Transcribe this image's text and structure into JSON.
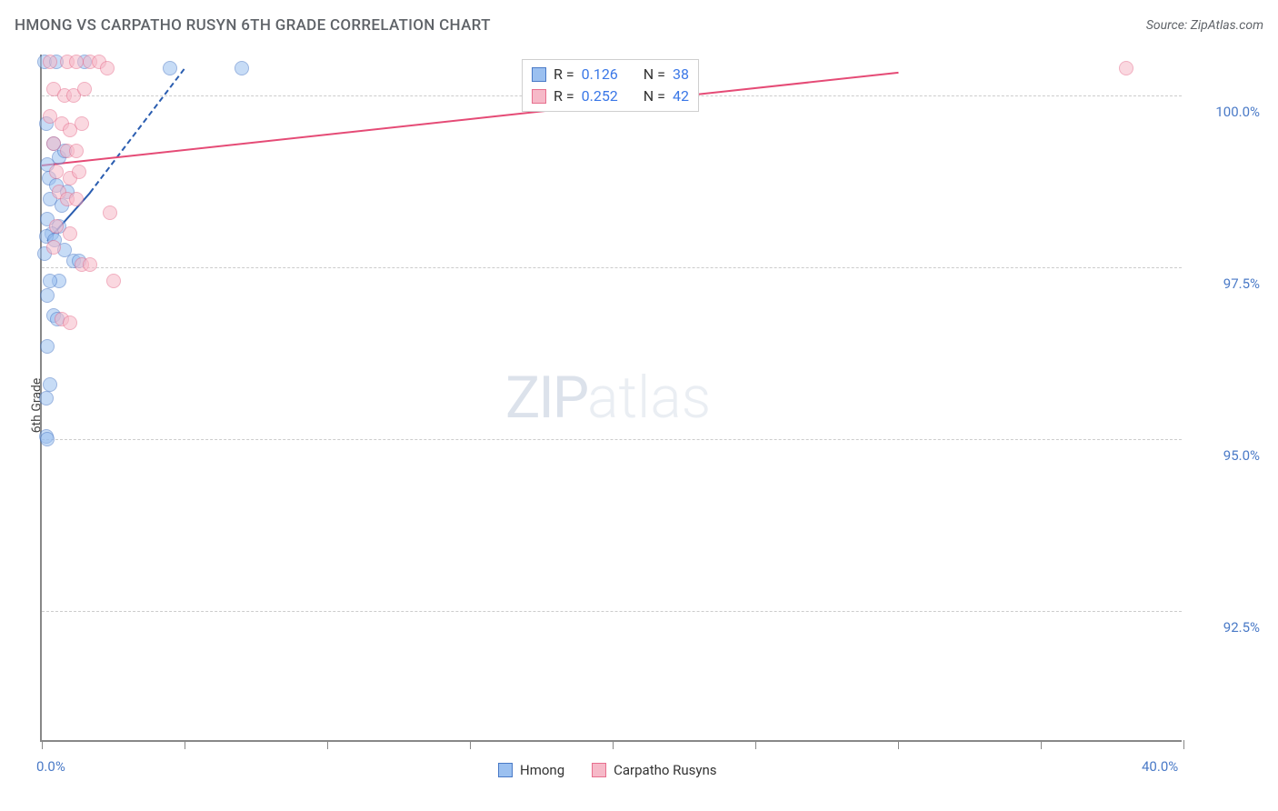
{
  "title": "HMONG VS CARPATHO RUSYN 6TH GRADE CORRELATION CHART",
  "source": "Source: ZipAtlas.com",
  "ylabel": "6th Grade",
  "watermark": {
    "zip": "ZIP",
    "atlas": "atlas"
  },
  "chart": {
    "type": "scatter",
    "background_color": "#ffffff",
    "grid_color": "#cccccc",
    "axis_color": "#888888",
    "tick_label_color": "#4a7ac7",
    "xlim": [
      0.0,
      40.0
    ],
    "ylim": [
      90.6,
      100.6
    ],
    "y_ticks": [
      {
        "value": 100.0,
        "label": "100.0%"
      },
      {
        "value": 97.5,
        "label": "97.5%"
      },
      {
        "value": 95.0,
        "label": "95.0%"
      },
      {
        "value": 92.5,
        "label": "92.5%"
      }
    ],
    "x_tick_positions": [
      0,
      5,
      10,
      15,
      20,
      25,
      30,
      35,
      40
    ],
    "x_tick_labels": [
      {
        "value": 0,
        "label": "0.0%"
      },
      {
        "value": 40,
        "label": "40.0%"
      }
    ],
    "marker_radius": 8,
    "marker_opacity": 0.55,
    "series": [
      {
        "name": "Hmong",
        "color_fill": "#9bc0f0",
        "color_stroke": "#4a7ac7",
        "R": "0.126",
        "N": "38",
        "trend": {
          "x1": 0.2,
          "y1": 97.9,
          "x2": 1.7,
          "y2": 98.6,
          "color": "#2a5db0",
          "dash_x1": 1.7,
          "dash_x2": 5.0,
          "dash_y2": 100.4
        },
        "points": [
          [
            0.1,
            100.5
          ],
          [
            0.5,
            100.5
          ],
          [
            1.5,
            100.5
          ],
          [
            4.5,
            100.4
          ],
          [
            7.0,
            100.4
          ],
          [
            0.15,
            99.6
          ],
          [
            0.4,
            99.3
          ],
          [
            0.2,
            99.0
          ],
          [
            0.6,
            99.1
          ],
          [
            0.8,
            99.2
          ],
          [
            0.25,
            98.8
          ],
          [
            0.5,
            98.7
          ],
          [
            0.3,
            98.5
          ],
          [
            0.7,
            98.4
          ],
          [
            0.9,
            98.6
          ],
          [
            0.2,
            98.2
          ],
          [
            0.6,
            98.1
          ],
          [
            0.35,
            98.0
          ],
          [
            0.15,
            97.95
          ],
          [
            0.45,
            97.9
          ],
          [
            0.1,
            97.7
          ],
          [
            0.8,
            97.75
          ],
          [
            1.1,
            97.6
          ],
          [
            1.3,
            97.6
          ],
          [
            0.6,
            97.3
          ],
          [
            0.3,
            97.3
          ],
          [
            0.2,
            97.1
          ],
          [
            0.4,
            96.8
          ],
          [
            0.55,
            96.75
          ],
          [
            0.2,
            96.35
          ],
          [
            0.3,
            95.8
          ],
          [
            0.15,
            95.6
          ],
          [
            0.15,
            95.05
          ],
          [
            0.2,
            95.0
          ]
        ]
      },
      {
        "name": "Carpatho Rusyns",
        "color_fill": "#f6b9c8",
        "color_stroke": "#e76f8e",
        "R": "0.252",
        "N": "42",
        "trend": {
          "x1": 0.0,
          "y1": 99.0,
          "x2": 30.0,
          "y2": 100.35,
          "color": "#e54b76"
        },
        "points": [
          [
            0.3,
            100.5
          ],
          [
            0.9,
            100.5
          ],
          [
            1.2,
            100.5
          ],
          [
            1.7,
            100.5
          ],
          [
            2.0,
            100.5
          ],
          [
            2.3,
            100.4
          ],
          [
            38.0,
            100.4
          ],
          [
            0.4,
            100.1
          ],
          [
            0.8,
            100.0
          ],
          [
            1.1,
            100.0
          ],
          [
            1.5,
            100.1
          ],
          [
            0.3,
            99.7
          ],
          [
            0.7,
            99.6
          ],
          [
            1.0,
            99.5
          ],
          [
            1.4,
            99.6
          ],
          [
            0.4,
            99.3
          ],
          [
            0.9,
            99.2
          ],
          [
            1.2,
            99.2
          ],
          [
            0.5,
            98.9
          ],
          [
            1.0,
            98.8
          ],
          [
            1.3,
            98.9
          ],
          [
            0.6,
            98.6
          ],
          [
            0.9,
            98.5
          ],
          [
            1.2,
            98.5
          ],
          [
            2.4,
            98.3
          ],
          [
            0.5,
            98.1
          ],
          [
            1.0,
            98.0
          ],
          [
            0.4,
            97.8
          ],
          [
            1.4,
            97.55
          ],
          [
            1.7,
            97.55
          ],
          [
            2.5,
            97.3
          ],
          [
            0.7,
            96.75
          ],
          [
            1.0,
            96.7
          ]
        ]
      }
    ]
  },
  "stats_box": {
    "label_R": "R  =",
    "label_N": "N  ="
  },
  "legend": {
    "items": [
      {
        "label": "Hmong",
        "fill": "#9bc0f0",
        "stroke": "#4a7ac7"
      },
      {
        "label": "Carpatho Rusyns",
        "fill": "#f6b9c8",
        "stroke": "#e76f8e"
      }
    ]
  }
}
